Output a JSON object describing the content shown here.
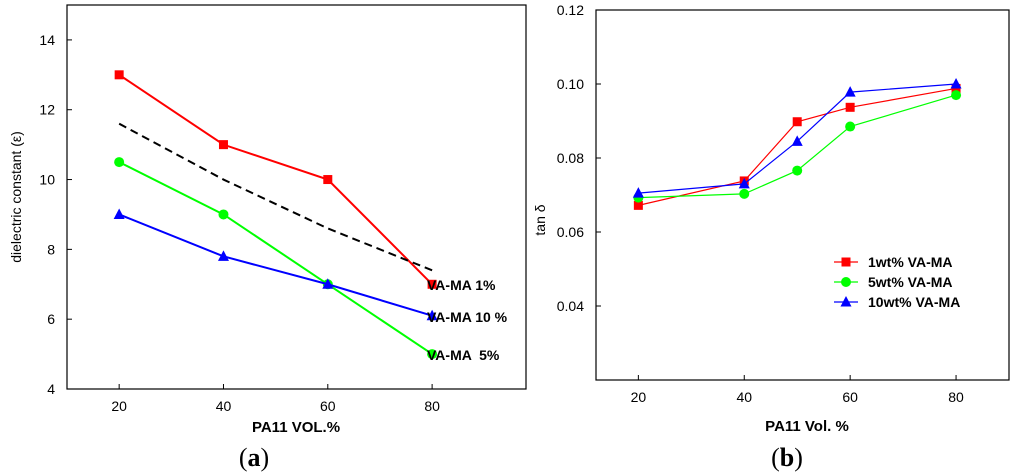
{
  "chart_data": [
    {
      "type": "line",
      "panel_label": {
        "open": "(",
        "letter": "a",
        "close": ")"
      },
      "xlabel": "PA11 VOL.%",
      "ylabel": "dielectric constant (ε)",
      "xlim": [
        10,
        98
      ],
      "ylim": [
        4,
        15
      ],
      "xticks": [
        20,
        40,
        60,
        80
      ],
      "yticks": [
        4,
        6,
        8,
        10,
        12,
        14
      ],
      "series": [
        {
          "name": "VA-MA 1%",
          "color": "#ff0000",
          "marker": "square",
          "x": [
            20,
            40,
            60,
            80
          ],
          "values": [
            13,
            11,
            10,
            7
          ]
        },
        {
          "name": "VA-MA  5%",
          "color": "#00ff00",
          "marker": "circle",
          "x": [
            20,
            40,
            60,
            80
          ],
          "values": [
            10.5,
            9,
            7,
            5
          ]
        },
        {
          "name": "VA-MA 10 %",
          "color": "#0000ff",
          "marker": "triangle",
          "x": [
            20,
            40,
            60,
            80
          ],
          "values": [
            9,
            7.8,
            7,
            6.1
          ]
        },
        {
          "name": "trend",
          "color": "#000000",
          "marker": "none",
          "dashed": true,
          "x": [
            20,
            40,
            60,
            80
          ],
          "values": [
            11.6,
            10,
            8.6,
            7.4
          ]
        }
      ],
      "annotations": [
        "VA-MA 1%",
        "VA-MA 10 %",
        "VA-MA  5%"
      ]
    },
    {
      "type": "line",
      "panel_label": {
        "open": "(",
        "letter": "b",
        "close": ")"
      },
      "xlabel": "PA11 Vol. %",
      "ylabel": "tan δ",
      "xlim": [
        12,
        90
      ],
      "ylim": [
        0.02,
        0.12
      ],
      "xticks": [
        20,
        40,
        60,
        80
      ],
      "yticks": [
        0.04,
        0.06,
        0.08,
        0.1,
        0.12
      ],
      "ytick_labels": [
        "0.04",
        "0.06",
        "0.08",
        "0.10",
        "0.12"
      ],
      "series": [
        {
          "name": "1wt% VA-MA",
          "color": "#ff0000",
          "marker": "square",
          "x": [
            20,
            40,
            50,
            60,
            80
          ],
          "values": [
            0.0672,
            0.0738,
            0.0898,
            0.0937,
            0.0988
          ]
        },
        {
          "name": "5wt% VA-MA",
          "color": "#00ff00",
          "marker": "circle",
          "x": [
            20,
            40,
            50,
            60,
            80
          ],
          "values": [
            0.0693,
            0.0703,
            0.0766,
            0.0885,
            0.097
          ]
        },
        {
          "name": "10wt% VA-MA",
          "color": "#0000ff",
          "marker": "triangle",
          "x": [
            20,
            40,
            50,
            60,
            80
          ],
          "values": [
            0.0705,
            0.073,
            0.0845,
            0.0978,
            0.1
          ]
        }
      ],
      "legend": [
        "1wt% VA-MA",
        "5wt% VA-MA",
        "10wt% VA-MA"
      ]
    }
  ]
}
